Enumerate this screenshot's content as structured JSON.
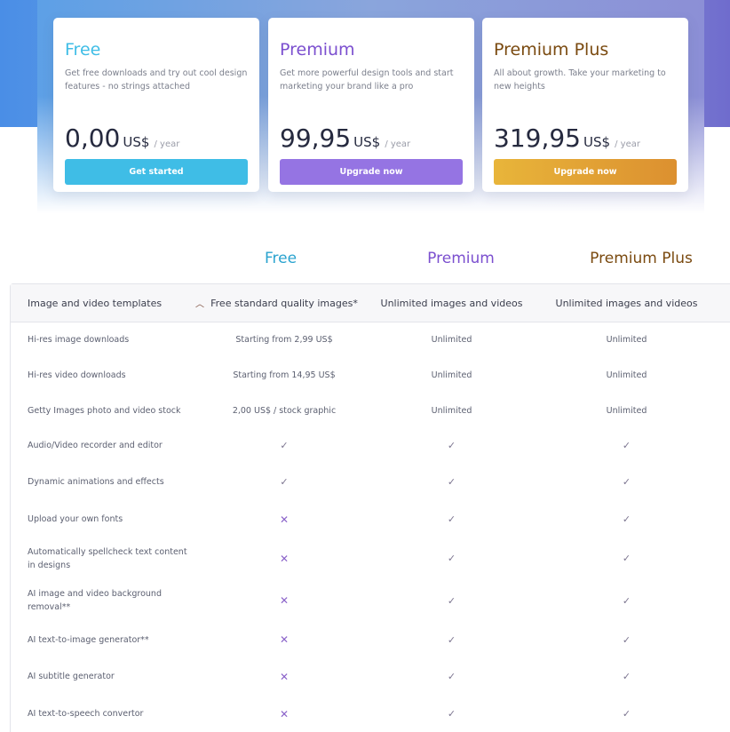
{
  "plans": [
    {
      "name": "Free",
      "description": "Get free downloads and try out cool design features - no strings attached",
      "price": "0,00",
      "currency": "US$",
      "period": "/ year",
      "cta": "Get started",
      "color": "#3fbde6"
    },
    {
      "name": "Premium",
      "description": "Get more powerful design tools and start marketing your brand like a pro",
      "price": "99,95",
      "currency": "US$",
      "period": "/ year",
      "cta": "Upgrade now",
      "color": "#9574e3"
    },
    {
      "name": "Premium Plus",
      "description": "All about growth. Take your marketing to new heights",
      "price": "319,95",
      "currency": "US$",
      "period": "/ year",
      "cta": "Upgrade now",
      "color": "#e2a12e"
    }
  ],
  "comparison": {
    "columns": [
      "Free",
      "Premium",
      "Premium Plus"
    ],
    "column_colors": [
      "#2aa3cf",
      "#7b4fcf",
      "#7a4a10"
    ],
    "section": {
      "label": "Image and video templates",
      "expanded": true,
      "values": [
        "Free standard quality images*",
        "Unlimited images and videos",
        "Unlimited images and videos"
      ]
    },
    "rows": [
      {
        "label": "Hi-res image downloads",
        "values": [
          "Starting from 2,99 US$",
          "Unlimited",
          "Unlimited"
        ]
      },
      {
        "label": "Hi-res video downloads",
        "values": [
          "Starting from 14,95 US$",
          "Unlimited",
          "Unlimited"
        ]
      },
      {
        "label": "Getty Images photo and video stock",
        "values": [
          "2,00 US$ / stock graphic",
          "Unlimited",
          "Unlimited"
        ]
      },
      {
        "label": "Audio/Video recorder and editor",
        "values": [
          "✓",
          "✓",
          "✓"
        ]
      },
      {
        "label": "Dynamic animations and effects",
        "values": [
          "✓",
          "✓",
          "✓"
        ]
      },
      {
        "label": "Upload your own fonts",
        "values": [
          "✕",
          "✓",
          "✓"
        ]
      },
      {
        "label": "Automatically spellcheck text content in designs",
        "values": [
          "✕",
          "✓",
          "✓"
        ]
      },
      {
        "label": "AI image and video background removal**",
        "values": [
          "✕",
          "✓",
          "✓"
        ]
      },
      {
        "label": "AI text-to-image generator**",
        "values": [
          "✕",
          "✓",
          "✓"
        ]
      },
      {
        "label": "AI subtitle generator",
        "values": [
          "✕",
          "✓",
          "✓"
        ]
      },
      {
        "label": "AI text-to-speech convertor",
        "values": [
          "✕",
          "✓",
          "✓"
        ]
      }
    ]
  }
}
